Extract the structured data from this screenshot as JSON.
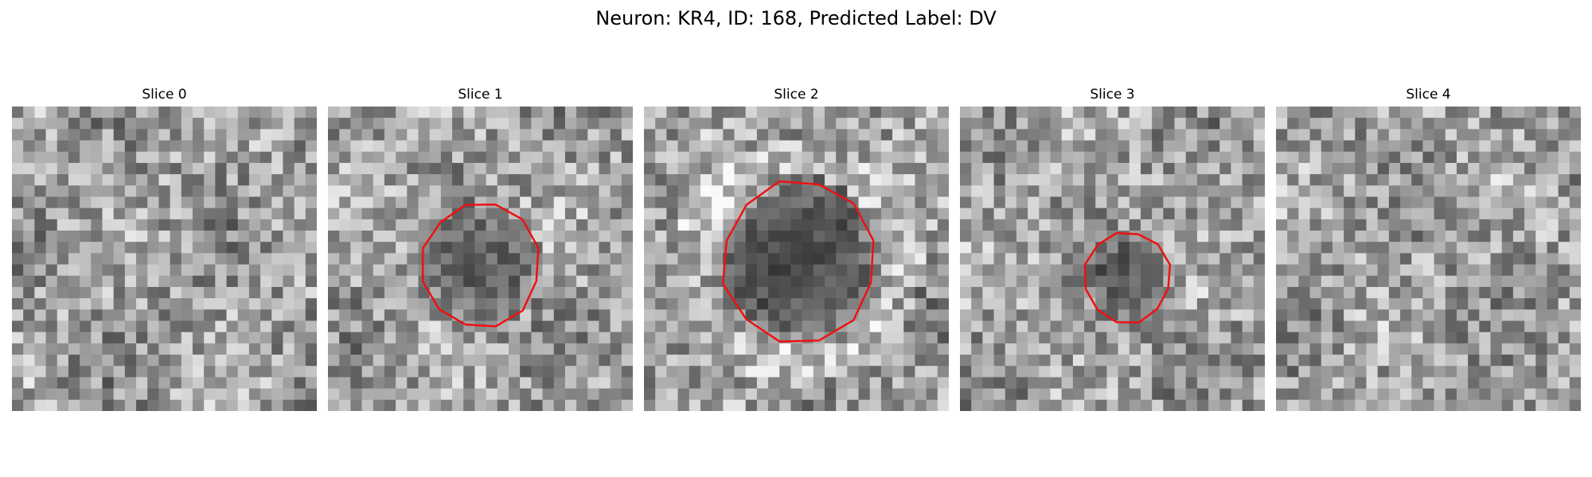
{
  "figure": {
    "title": "Neuron: KR4, ID: 168, Predicted Label: DV"
  },
  "panels": [
    {
      "title": "Slice 0",
      "has_outline": false,
      "darkness": 0.0,
      "radius": 0.0,
      "seed": 11
    },
    {
      "title": "Slice 1",
      "has_outline": true,
      "darkness": 0.55,
      "radius": 0.19,
      "seed": 23
    },
    {
      "title": "Slice 2",
      "has_outline": true,
      "darkness": 0.78,
      "radius": 0.25,
      "seed": 37
    },
    {
      "title": "Slice 3",
      "has_outline": true,
      "darkness": 0.55,
      "radius": 0.14,
      "seed": 51
    },
    {
      "title": "Slice 4",
      "has_outline": false,
      "darkness": 0.0,
      "radius": 0.0,
      "seed": 67
    }
  ],
  "colors": {
    "outline": "#ee1111",
    "colormap": "gray"
  }
}
